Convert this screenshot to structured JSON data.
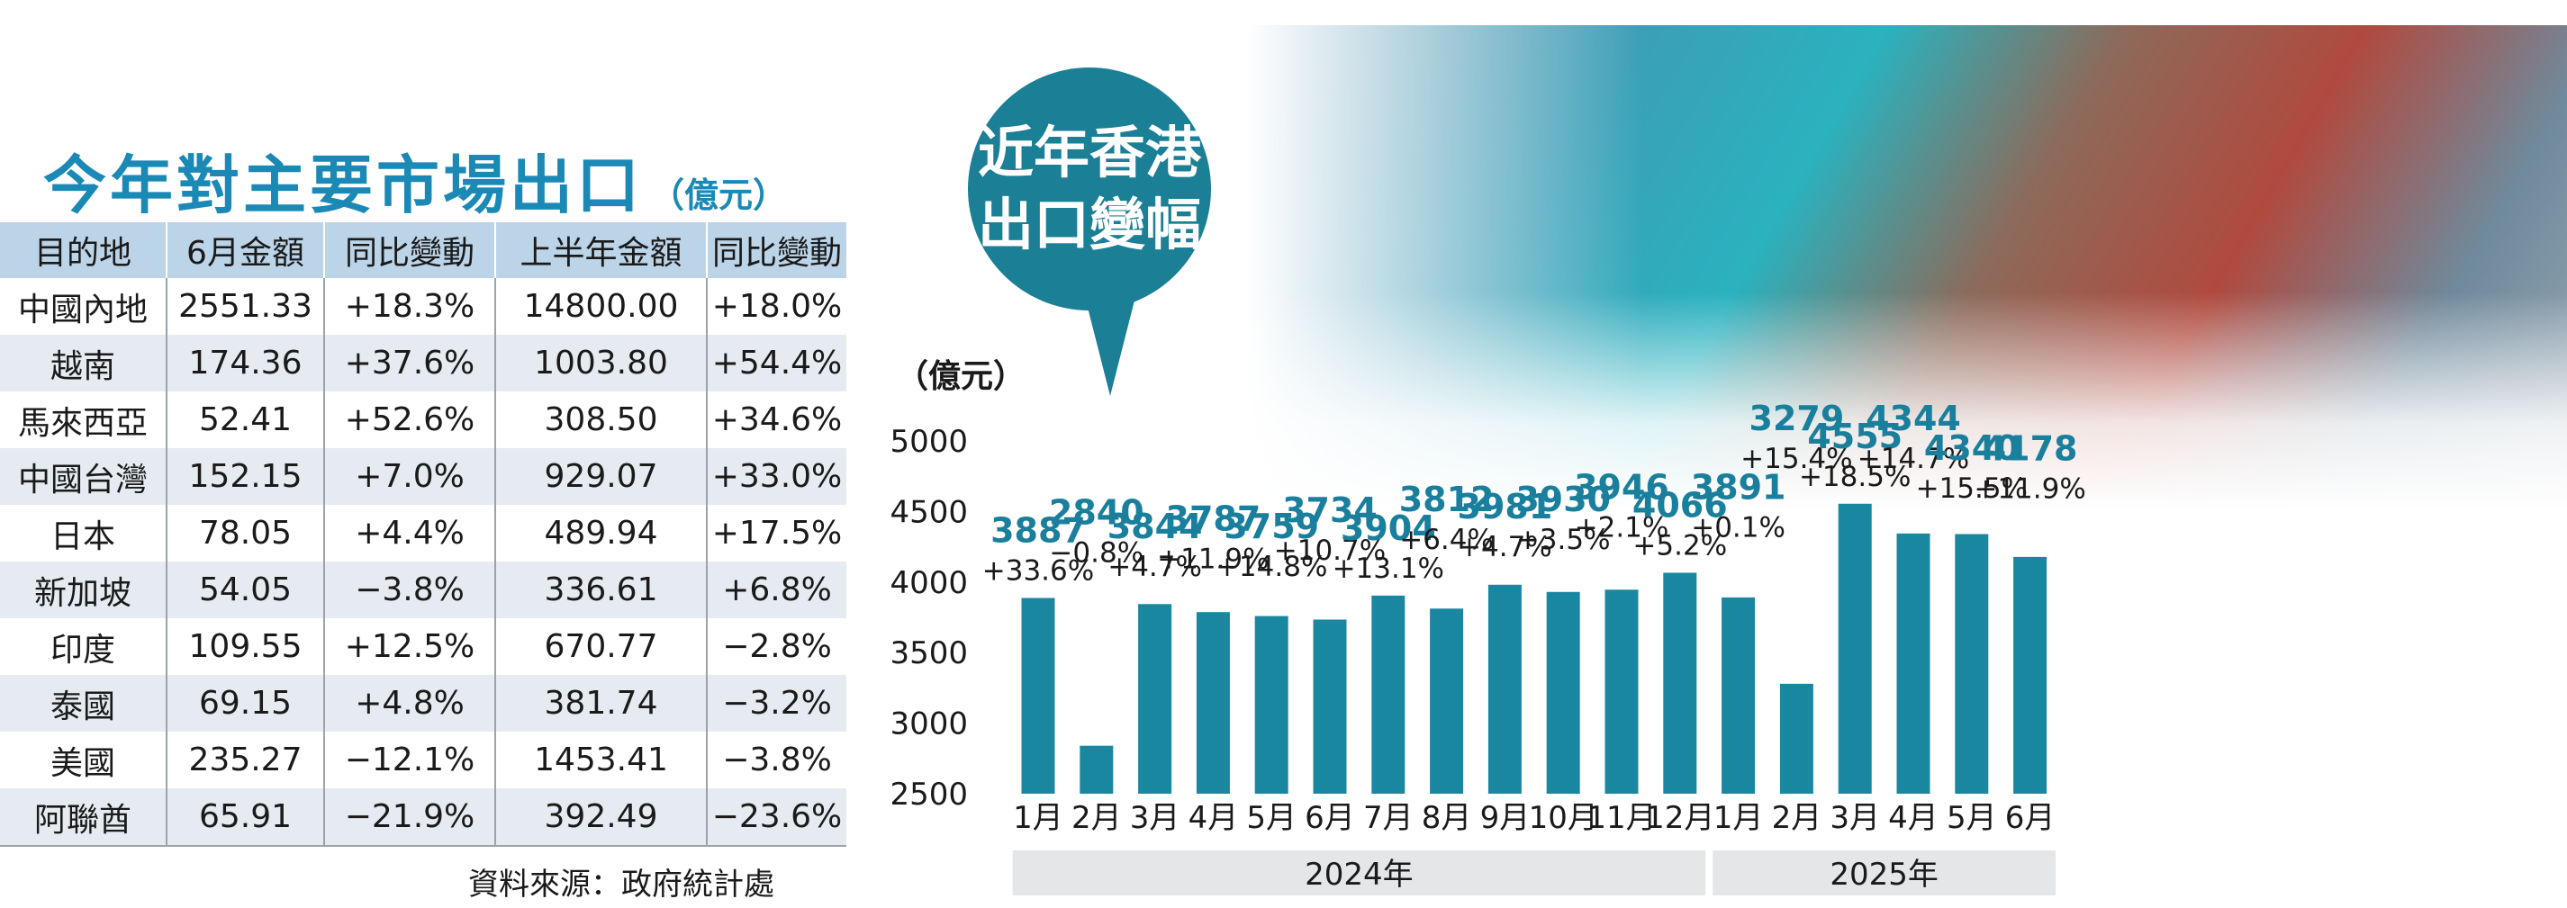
{
  "table": {
    "title": "今年對主要市場出口",
    "unit": "（億元）",
    "headers": [
      "目的地",
      "6月金額",
      "同比變動",
      "上半年金額",
      "同比變動"
    ],
    "rows": [
      [
        "中國內地",
        "2551.33",
        "+18.3%",
        "14800.00",
        "+18.0%"
      ],
      [
        "越南",
        "174.36",
        "+37.6%",
        "1003.80",
        "+54.4%"
      ],
      [
        "馬來西亞",
        "52.41",
        "+52.6%",
        "308.50",
        "+34.6%"
      ],
      [
        "中國台灣",
        "152.15",
        "+7.0%",
        "929.07",
        "+33.0%"
      ],
      [
        "日本",
        "78.05",
        "+4.4%",
        "489.94",
        "+17.5%"
      ],
      [
        "新加坡",
        "54.05",
        "−3.8%",
        "336.61",
        "+6.8%"
      ],
      [
        "印度",
        "109.55",
        "+12.5%",
        "670.77",
        "−2.8%"
      ],
      [
        "泰國",
        "69.15",
        "+4.8%",
        "381.74",
        "−3.2%"
      ],
      [
        "美國",
        "235.27",
        "−12.1%",
        "1453.41",
        "−3.8%"
      ],
      [
        "阿聯酋",
        "65.91",
        "−21.9%",
        "392.49",
        "−23.6%"
      ]
    ],
    "source": "資料來源：政府統計處"
  },
  "chart_data": {
    "type": "bar",
    "title": "近年香港出口變幅",
    "ylabel": "（億元）",
    "ylim": [
      2500,
      5000
    ],
    "yticks": [
      5000,
      4500,
      4000,
      3500,
      3000,
      2500
    ],
    "categories": [
      "1月",
      "2月",
      "3月",
      "4月",
      "5月",
      "6月",
      "7月",
      "8月",
      "9月",
      "10月",
      "11月",
      "12月",
      "1月",
      "2月",
      "3月",
      "4月",
      "5月",
      "6月"
    ],
    "groups": [
      {
        "label": "2024年",
        "count": 12
      },
      {
        "label": "2025年",
        "count": 6
      }
    ],
    "values": [
      3887,
      2840,
      3844,
      3787,
      3759,
      3734,
      3904,
      3812,
      3981,
      3930,
      3946,
      4066,
      3891,
      3279,
      4555,
      4344,
      4340,
      4178
    ],
    "changes": [
      "+33.6%",
      "−0.8%",
      "+4.7%",
      "+11.9%",
      "+14.8%",
      "+10.7%",
      "+13.1%",
      "+6.4%",
      "+4.7%",
      "+3.5%",
      "+2.1%",
      "+5.2%",
      "+0.1%",
      "+15.4%",
      "+18.5%",
      "+14.7%",
      "+15.5%",
      "+11.9%"
    ],
    "grid": false,
    "colors": {
      "bar": "#1a87a0",
      "label": "#1a7f9c",
      "group_band": "#e4e6e8"
    }
  }
}
